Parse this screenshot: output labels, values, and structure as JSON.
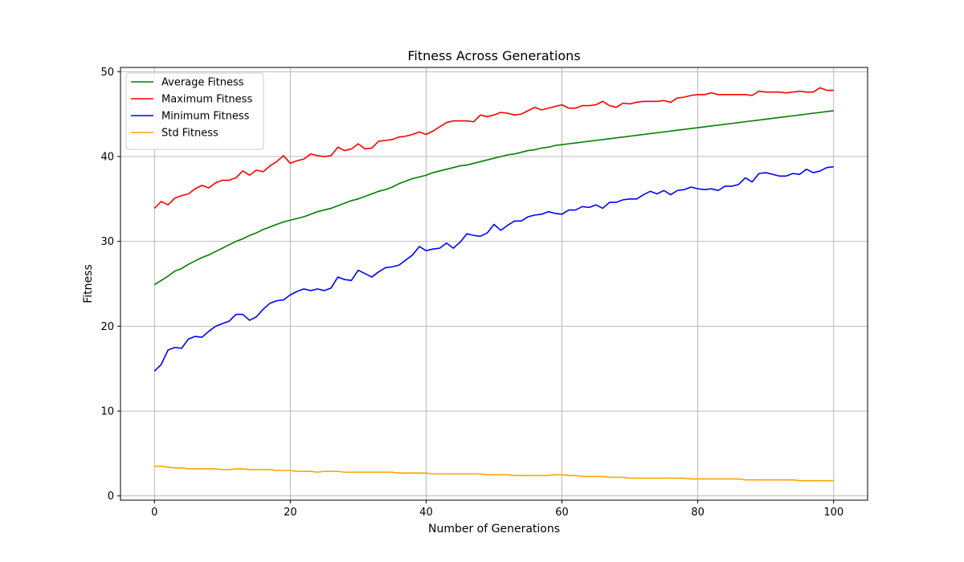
{
  "chart_data": {
    "type": "line",
    "title": "Fitness Across Generations",
    "xlabel": "Number of Generations",
    "ylabel": "Fitness",
    "xlim": [
      -5,
      105
    ],
    "ylim": [
      -0.5,
      50.5
    ],
    "xticks": [
      0,
      20,
      40,
      60,
      80,
      100
    ],
    "yticks": [
      0,
      10,
      20,
      30,
      40,
      50
    ],
    "grid": true,
    "legend_position": "upper-left",
    "x": [
      0,
      1,
      2,
      3,
      4,
      5,
      6,
      7,
      8,
      9,
      10,
      11,
      12,
      13,
      14,
      15,
      16,
      17,
      18,
      19,
      20,
      21,
      22,
      23,
      24,
      25,
      26,
      27,
      28,
      29,
      30,
      31,
      32,
      33,
      34,
      35,
      36,
      37,
      38,
      39,
      40,
      41,
      42,
      43,
      44,
      45,
      46,
      47,
      48,
      49,
      50,
      51,
      52,
      53,
      54,
      55,
      56,
      57,
      58,
      59,
      60,
      61,
      62,
      63,
      64,
      65,
      66,
      67,
      68,
      69,
      70,
      71,
      72,
      73,
      74,
      75,
      76,
      77,
      78,
      79,
      80,
      81,
      82,
      83,
      84,
      85,
      86,
      87,
      88,
      89,
      90,
      91,
      92,
      93,
      94,
      95,
      96,
      97,
      98,
      99,
      100
    ],
    "series": [
      {
        "name": "Average Fitness",
        "color": "#008000",
        "values": [
          24.9,
          25.4,
          25.9,
          26.5,
          26.8,
          27.3,
          27.7,
          28.1,
          28.4,
          28.8,
          29.2,
          29.6,
          30.0,
          30.3,
          30.7,
          31.0,
          31.4,
          31.7,
          32.0,
          32.3,
          32.5,
          32.7,
          32.9,
          33.2,
          33.5,
          33.7,
          33.9,
          34.2,
          34.5,
          34.8,
          35.0,
          35.3,
          35.6,
          35.9,
          36.1,
          36.4,
          36.8,
          37.1,
          37.4,
          37.6,
          37.8,
          38.1,
          38.3,
          38.5,
          38.7,
          38.9,
          39.0,
          39.2,
          39.4,
          39.6,
          39.8,
          40.0,
          40.2,
          40.3,
          40.5,
          40.7,
          40.8,
          41.0,
          41.1,
          41.3,
          41.4,
          41.5,
          41.6,
          41.7,
          41.8,
          41.9,
          42.0,
          42.1,
          42.2,
          42.3,
          42.4,
          42.5,
          42.6,
          42.7,
          42.8,
          42.9,
          43.0,
          43.1,
          43.2,
          43.3,
          43.4,
          43.5,
          43.6,
          43.7,
          43.8,
          43.9,
          44.0,
          44.1,
          44.2,
          44.3,
          44.4,
          44.5,
          44.6,
          44.7,
          44.8,
          44.9,
          45.0,
          45.1,
          45.2,
          45.3,
          45.4
        ],
        "values_note": ""
      },
      {
        "name": "Maximum Fitness",
        "color": "#ff0000",
        "values": [
          33.9,
          34.7,
          34.3,
          35.1,
          35.4,
          35.6,
          36.2,
          36.6,
          36.3,
          36.9,
          37.2,
          37.2,
          37.5,
          38.3,
          37.8,
          38.4,
          38.2,
          38.9,
          39.4,
          40.1,
          39.2,
          39.5,
          39.7,
          40.3,
          40.1,
          40.0,
          40.1,
          41.1,
          40.7,
          40.9,
          41.5,
          40.9,
          41.0,
          41.8,
          41.9,
          42.0,
          42.3,
          42.4,
          42.6,
          42.9,
          42.6,
          43.0,
          43.5,
          44.0,
          44.2,
          44.2,
          44.2,
          44.1,
          44.9,
          44.7,
          44.9,
          45.2,
          45.1,
          44.9,
          45.0,
          45.4,
          45.8,
          45.5,
          45.7,
          45.9,
          46.1,
          45.7,
          45.7,
          46.0,
          46.0,
          46.1,
          46.5,
          46.0,
          45.8,
          46.3,
          46.2,
          46.4,
          46.5,
          46.5,
          46.5,
          46.6,
          46.4,
          46.9,
          47.0,
          47.2,
          47.3,
          47.3,
          47.5,
          47.3,
          47.3,
          47.3,
          47.3,
          47.3,
          47.2,
          47.7,
          47.6,
          47.6,
          47.6,
          47.5,
          47.6,
          47.7,
          47.6,
          47.6,
          48.1,
          47.8,
          47.8
        ],
        "values_note": ""
      },
      {
        "name": "Minimum Fitness",
        "color": "#0000ff",
        "values": [
          14.7,
          15.5,
          17.2,
          17.5,
          17.4,
          18.5,
          18.8,
          18.7,
          19.4,
          20.0,
          20.3,
          20.6,
          21.4,
          21.4,
          20.7,
          21.1,
          22.0,
          22.7,
          23.0,
          23.1,
          23.7,
          24.1,
          24.4,
          24.2,
          24.4,
          24.2,
          24.5,
          25.8,
          25.5,
          25.4,
          26.6,
          26.2,
          25.8,
          26.4,
          26.9,
          27.0,
          27.2,
          27.8,
          28.4,
          29.4,
          28.9,
          29.1,
          29.2,
          29.8,
          29.2,
          29.9,
          30.9,
          30.7,
          30.6,
          31.0,
          32.0,
          31.3,
          31.9,
          32.4,
          32.4,
          32.9,
          33.1,
          33.2,
          33.5,
          33.3,
          33.2,
          33.7,
          33.7,
          34.1,
          34.0,
          34.3,
          33.9,
          34.6,
          34.6,
          34.9,
          35.0,
          35.0,
          35.5,
          35.9,
          35.6,
          36.0,
          35.5,
          36.0,
          36.1,
          36.4,
          36.2,
          36.1,
          36.2,
          36.0,
          36.5,
          36.5,
          36.7,
          37.5,
          37.0,
          38.0,
          38.1,
          37.9,
          37.7,
          37.7,
          38.0,
          37.9,
          38.5,
          38.1,
          38.3,
          38.7,
          38.8
        ],
        "values_note": ""
      },
      {
        "name": "Std Fitness",
        "color": "#ffa500",
        "values": [
          3.5,
          3.5,
          3.4,
          3.3,
          3.3,
          3.2,
          3.2,
          3.2,
          3.2,
          3.2,
          3.1,
          3.1,
          3.2,
          3.2,
          3.1,
          3.1,
          3.1,
          3.1,
          3.0,
          3.0,
          3.0,
          2.9,
          2.9,
          2.9,
          2.8,
          2.9,
          2.9,
          2.9,
          2.8,
          2.8,
          2.8,
          2.8,
          2.8,
          2.8,
          2.8,
          2.8,
          2.7,
          2.7,
          2.7,
          2.7,
          2.7,
          2.6,
          2.6,
          2.6,
          2.6,
          2.6,
          2.6,
          2.6,
          2.6,
          2.5,
          2.5,
          2.5,
          2.5,
          2.4,
          2.4,
          2.4,
          2.4,
          2.4,
          2.4,
          2.5,
          2.5,
          2.4,
          2.4,
          2.3,
          2.3,
          2.3,
          2.3,
          2.2,
          2.2,
          2.2,
          2.1,
          2.1,
          2.1,
          2.1,
          2.1,
          2.1,
          2.1,
          2.1,
          2.1,
          2.0,
          2.0,
          2.0,
          2.0,
          2.0,
          2.0,
          2.0,
          2.0,
          1.9,
          1.9,
          1.9,
          1.9,
          1.9,
          1.9,
          1.9,
          1.9,
          1.8,
          1.8,
          1.8,
          1.8,
          1.8,
          1.8
        ],
        "values_note": ""
      }
    ]
  }
}
